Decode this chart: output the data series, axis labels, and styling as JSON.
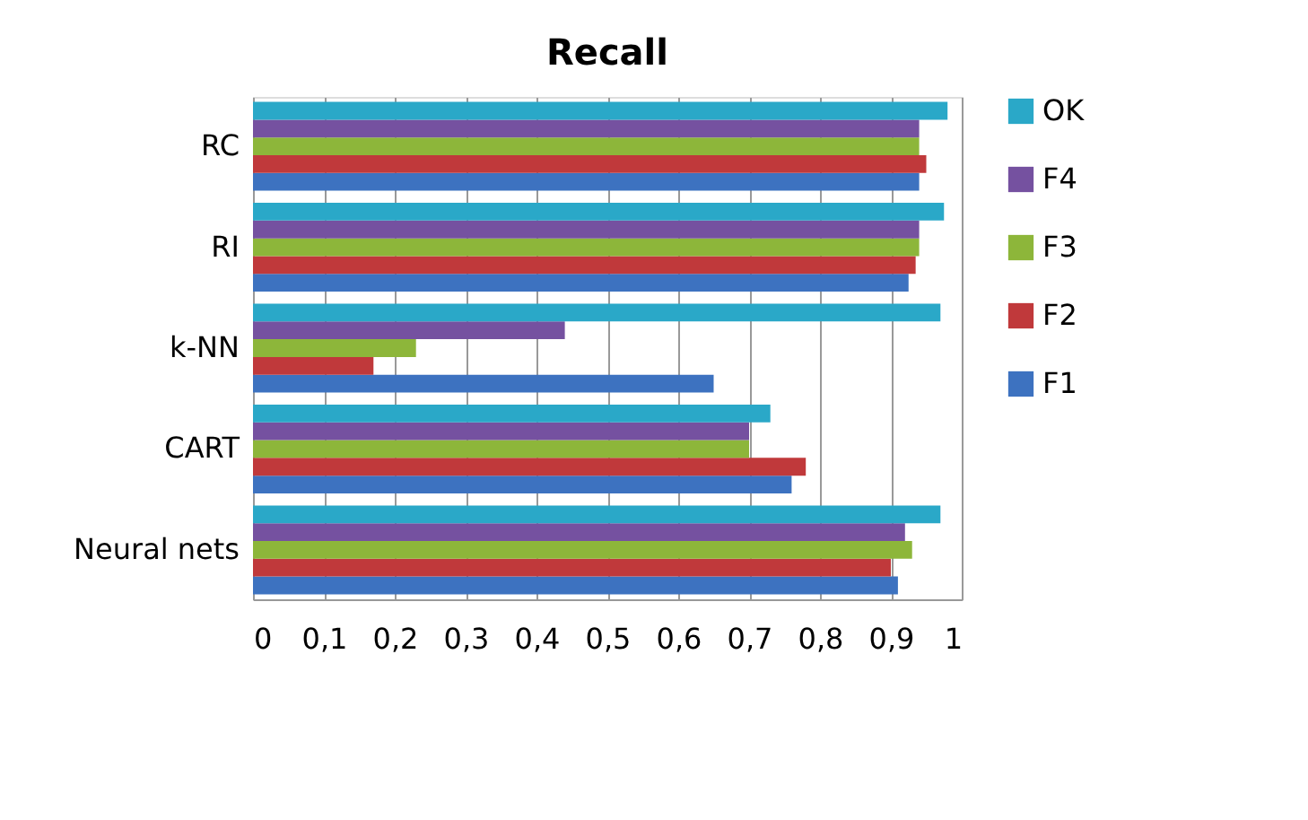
{
  "chart_data": {
    "type": "bar",
    "title": "Recall",
    "orientation": "horizontal",
    "categories": [
      "RC",
      "RI",
      "k-NN",
      "CART",
      "Neural nets"
    ],
    "series": [
      {
        "name": "F1",
        "color": "#3d72c0",
        "values": [
          0.94,
          0.925,
          0.65,
          0.76,
          0.91
        ]
      },
      {
        "name": "F2",
        "color": "#c0393b",
        "values": [
          0.95,
          0.935,
          0.17,
          0.78,
          0.9
        ]
      },
      {
        "name": "F3",
        "color": "#8db63a",
        "values": [
          0.94,
          0.94,
          0.23,
          0.7,
          0.93
        ]
      },
      {
        "name": "F4",
        "color": "#7551a0",
        "values": [
          0.94,
          0.94,
          0.44,
          0.7,
          0.92
        ]
      },
      {
        "name": "OK",
        "color": "#2aa8c8",
        "values": [
          0.98,
          0.975,
          0.97,
          0.73,
          0.97
        ]
      }
    ],
    "xlim": [
      0,
      1
    ],
    "xticks": [
      0,
      {
        "value": 0.1,
        "label": "0,1"
      },
      {
        "value": 0.2,
        "label": "0,2"
      },
      {
        "value": 0.3,
        "label": "0,3"
      },
      {
        "value": 0.4,
        "label": "0,4"
      },
      {
        "value": 0.5,
        "label": "0,5"
      },
      {
        "value": 0.6,
        "label": "0,6"
      },
      {
        "value": 0.7,
        "label": "0,7"
      },
      {
        "value": 0.8,
        "label": "0,8"
      },
      {
        "value": 0.9,
        "label": "0,9"
      },
      1
    ],
    "grid": "x",
    "legend": "right"
  }
}
